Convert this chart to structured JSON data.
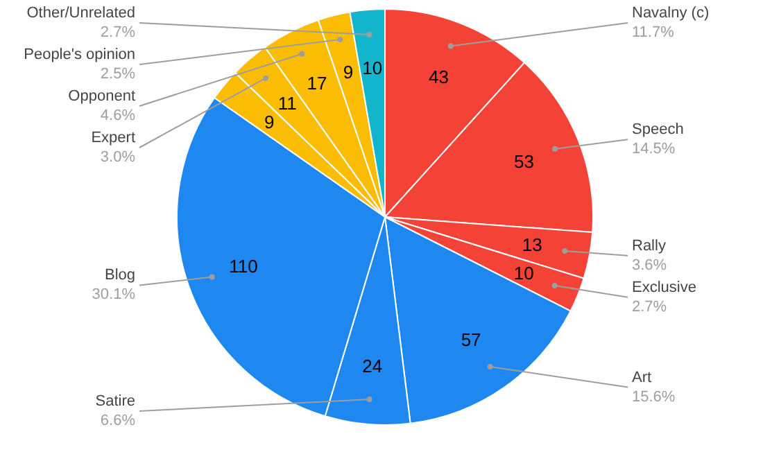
{
  "chart_data": {
    "type": "pie",
    "categories": [
      "Navalny (c)",
      "Speech",
      "Rally",
      "Exclusive",
      "Art",
      "Satire",
      "Blog",
      null,
      "Expert",
      "Opponent",
      "People's opinion",
      "Other/Unrelated"
    ],
    "values": [
      11.7,
      14.5,
      3.6,
      2.7,
      15.6,
      6.6,
      30.1,
      2.5,
      3.0,
      4.6,
      2.5,
      2.7
    ],
    "colors": [
      "#f44336",
      "#f44336",
      "#f44336",
      "#f44336",
      "#1e88f0",
      "#1e88f0",
      "#1e88f0",
      "#fbbc04",
      "#fbbc04",
      "#fbbc04",
      "#fbbc04",
      "#12b5cb"
    ],
    "value_labels": [
      "11.7%",
      "14.5%",
      "3.6%",
      "2.7%",
      "15.6%",
      "6.6%",
      "30.1%",
      null,
      "3.0%",
      "4.6%",
      "2.5%",
      "2.7%"
    ],
    "annotations": [
      "43",
      "53",
      "13",
      "10",
      "57",
      "24",
      "110",
      "9",
      "11",
      "17",
      "9",
      "10"
    ]
  }
}
